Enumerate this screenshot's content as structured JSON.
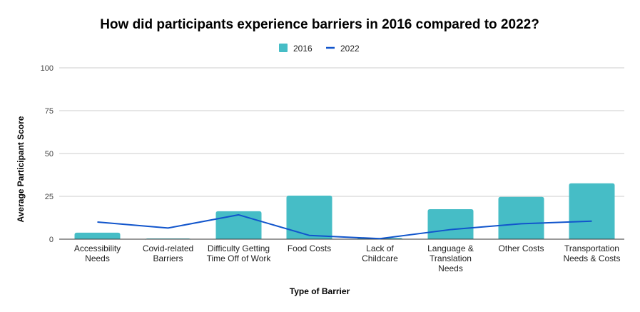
{
  "chart_data": {
    "type": "bar",
    "title": "How did participants experience barriers in 2016 compared to 2022?",
    "xlabel": "Type of Barrier",
    "ylabel": "Average Participant Score",
    "ylim": [
      0,
      100
    ],
    "yticks": [
      "0",
      "25",
      "50",
      "75",
      "100"
    ],
    "grid": true,
    "legend_position": "top",
    "categories": [
      [
        "Accessibility",
        "Needs"
      ],
      [
        "Covid-related",
        "Barriers"
      ],
      [
        "Difficulty Getting",
        "Time Off of Work"
      ],
      [
        "Food Costs"
      ],
      [
        "Lack of",
        "Childcare"
      ],
      [
        "Language &",
        "Translation",
        "Needs"
      ],
      [
        "Other Costs"
      ],
      [
        "Transportation",
        "Needs & Costs"
      ]
    ],
    "series": [
      {
        "name": "2016",
        "type": "bar",
        "color": "#46bdc6",
        "values": [
          3.8,
          0.4,
          16.3,
          25.4,
          0.7,
          17.5,
          24.7,
          32.6
        ]
      },
      {
        "name": "2022",
        "type": "line",
        "color": "#1155cc",
        "values": [
          10.0,
          6.5,
          14.2,
          2.2,
          0.3,
          5.6,
          9.0,
          10.5
        ]
      }
    ]
  }
}
